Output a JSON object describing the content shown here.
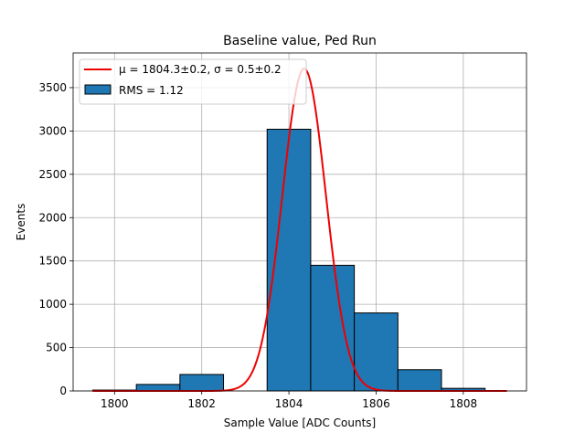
{
  "chart_data": {
    "type": "bar",
    "title": "Baseline value, Ped Run",
    "xlabel": "Sample Value [ADC Counts]",
    "ylabel": "Events",
    "xlim": [
      1799.05,
      1809.45
    ],
    "ylim": [
      0,
      3900
    ],
    "xticks": [
      1800,
      1802,
      1804,
      1806,
      1808
    ],
    "yticks": [
      0,
      500,
      1000,
      1500,
      2000,
      2500,
      3000,
      3500
    ],
    "grid": true,
    "legend_position": "top-left",
    "histogram": {
      "name": "RMS = 1.12",
      "bin_edges": [
        1799.5,
        1800.5,
        1801.5,
        1802.5,
        1803.5,
        1804.5,
        1805.5,
        1806.5,
        1807.5,
        1808.5
      ],
      "counts": [
        10,
        75,
        190,
        0,
        3020,
        1450,
        900,
        245,
        30
      ],
      "color": "#1f77b4"
    },
    "fit": {
      "name": "μ = 1804.3±0.2, σ = 0.5±0.2",
      "type": "gaussian",
      "mu": 1804.35,
      "sigma": 0.5,
      "amplitude": 3720,
      "x_range": [
        1799.5,
        1809.0
      ],
      "color": "#ee0000"
    }
  }
}
